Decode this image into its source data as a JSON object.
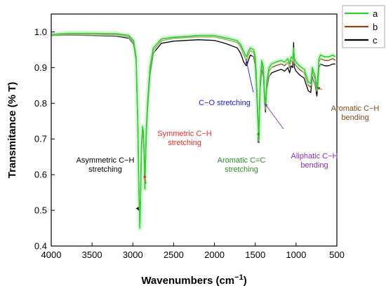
{
  "chart_data": {
    "type": "line",
    "xlabel": "Wavenumbers (cm",
    "xlabel_sup": "−1",
    "xlabel_end": ")",
    "ylabel": "Transmitance (% T)",
    "xlim": [
      4000,
      500
    ],
    "ylim": [
      0.4,
      1.05
    ],
    "x_reversed": true,
    "grid": false,
    "legend_position": "top-right",
    "x_ticks": [
      "4000",
      "3500",
      "3000",
      "2500",
      "2000",
      "1500",
      "1000",
      "500"
    ],
    "y_ticks": [
      "0.4",
      "0.5",
      "0.6",
      "0.7",
      "0.8",
      "0.9",
      "1.0"
    ],
    "series": [
      {
        "name": "a",
        "color": "#33cc33",
        "x": [
          4000,
          3800,
          3500,
          3200,
          3050,
          2990,
          2960,
          2940,
          2925,
          2915,
          2905,
          2895,
          2880,
          2870,
          2860,
          2852,
          2845,
          2835,
          2820,
          2790,
          2750,
          2650,
          2500,
          2350,
          2200,
          2000,
          1900,
          1800,
          1720,
          1680,
          1640,
          1610,
          1600,
          1585,
          1560,
          1520,
          1500,
          1490,
          1470,
          1455,
          1450,
          1440,
          1420,
          1400,
          1385,
          1375,
          1360,
          1330,
          1300,
          1250,
          1180,
          1140,
          1100,
          1080,
          1060,
          1040,
          1030,
          1020,
          1000,
          960,
          930,
          900,
          880,
          850,
          820,
          800,
          790,
          770,
          755,
          745,
          735,
          720,
          700,
          650,
          600,
          550,
          520
        ],
        "y": [
          0.993,
          0.996,
          0.996,
          0.995,
          0.99,
          0.975,
          0.93,
          0.75,
          0.55,
          0.45,
          0.54,
          0.68,
          0.735,
          0.72,
          0.64,
          0.56,
          0.64,
          0.73,
          0.8,
          0.9,
          0.955,
          0.98,
          0.985,
          0.987,
          0.99,
          0.99,
          0.985,
          0.98,
          0.975,
          0.965,
          0.945,
          0.93,
          0.935,
          0.945,
          0.955,
          0.95,
          0.93,
          0.89,
          0.78,
          0.7,
          0.76,
          0.86,
          0.92,
          0.9,
          0.82,
          0.79,
          0.86,
          0.9,
          0.91,
          0.915,
          0.92,
          0.915,
          0.925,
          0.91,
          0.93,
          0.925,
          0.95,
          0.925,
          0.915,
          0.905,
          0.9,
          0.895,
          0.88,
          0.86,
          0.855,
          0.9,
          0.89,
          0.88,
          0.86,
          0.84,
          0.87,
          0.925,
          0.935,
          0.93,
          0.93,
          0.935,
          0.93
        ]
      },
      {
        "name": "b",
        "color": "#8b4513",
        "x": [
          4000,
          3800,
          3500,
          3200,
          3050,
          2990,
          2960,
          2940,
          2925,
          2915,
          2905,
          2895,
          2880,
          2870,
          2860,
          2852,
          2845,
          2835,
          2820,
          2790,
          2750,
          2650,
          2500,
          2350,
          2200,
          2000,
          1900,
          1800,
          1720,
          1680,
          1640,
          1610,
          1600,
          1585,
          1560,
          1520,
          1500,
          1490,
          1470,
          1455,
          1450,
          1440,
          1420,
          1400,
          1385,
          1375,
          1360,
          1330,
          1300,
          1250,
          1180,
          1140,
          1100,
          1080,
          1060,
          1040,
          1030,
          1020,
          1000,
          960,
          930,
          900,
          880,
          850,
          820,
          800,
          790,
          770,
          755,
          745,
          735,
          720,
          700,
          650,
          600,
          550,
          520
        ],
        "y": [
          0.99,
          0.993,
          0.993,
          0.992,
          0.986,
          0.97,
          0.925,
          0.75,
          0.55,
          0.455,
          0.54,
          0.67,
          0.73,
          0.715,
          0.635,
          0.56,
          0.635,
          0.72,
          0.79,
          0.89,
          0.948,
          0.975,
          0.982,
          0.984,
          0.986,
          0.986,
          0.981,
          0.975,
          0.97,
          0.958,
          0.935,
          0.92,
          0.925,
          0.935,
          0.948,
          0.942,
          0.92,
          0.88,
          0.77,
          0.695,
          0.75,
          0.85,
          0.91,
          0.89,
          0.81,
          0.78,
          0.85,
          0.89,
          0.9,
          0.905,
          0.91,
          0.905,
          0.915,
          0.9,
          0.92,
          0.915,
          0.94,
          0.915,
          0.905,
          0.895,
          0.89,
          0.885,
          0.87,
          0.85,
          0.845,
          0.89,
          0.88,
          0.87,
          0.85,
          0.832,
          0.86,
          0.915,
          0.925,
          0.92,
          0.92,
          0.925,
          0.92
        ]
      },
      {
        "name": "c",
        "color": "#000000",
        "x": [
          4000,
          3800,
          3500,
          3200,
          3050,
          2990,
          2960,
          2940,
          2925,
          2915,
          2905,
          2895,
          2880,
          2870,
          2860,
          2852,
          2845,
          2835,
          2820,
          2790,
          2750,
          2650,
          2500,
          2350,
          2200,
          2000,
          1900,
          1800,
          1720,
          1680,
          1640,
          1610,
          1600,
          1585,
          1560,
          1520,
          1500,
          1490,
          1470,
          1455,
          1450,
          1440,
          1420,
          1400,
          1385,
          1375,
          1360,
          1330,
          1300,
          1250,
          1180,
          1140,
          1100,
          1080,
          1060,
          1040,
          1030,
          1020,
          1000,
          960,
          930,
          900,
          880,
          850,
          820,
          800,
          790,
          770,
          755,
          745,
          735,
          720,
          700,
          650,
          600,
          550,
          520
        ],
        "y": [
          0.99,
          0.991,
          0.99,
          0.988,
          0.982,
          0.965,
          0.92,
          0.74,
          0.55,
          0.46,
          0.545,
          0.665,
          0.72,
          0.71,
          0.63,
          0.565,
          0.63,
          0.71,
          0.78,
          0.88,
          0.94,
          0.968,
          0.974,
          0.976,
          0.978,
          0.976,
          0.97,
          0.962,
          0.955,
          0.94,
          0.915,
          0.905,
          0.91,
          0.92,
          0.935,
          0.93,
          0.905,
          0.865,
          0.76,
          0.69,
          0.745,
          0.84,
          0.895,
          0.875,
          0.8,
          0.775,
          0.84,
          0.875,
          0.885,
          0.89,
          0.895,
          0.89,
          0.9,
          0.885,
          0.905,
          0.9,
          0.97,
          0.9,
          0.89,
          0.88,
          0.875,
          0.87,
          0.855,
          0.835,
          0.83,
          0.875,
          0.865,
          0.855,
          0.835,
          0.82,
          0.845,
          0.9,
          0.91,
          0.905,
          0.905,
          0.91,
          0.91
        ]
      }
    ],
    "annotations": [
      {
        "lines": [
          "Asymmetric C−H",
          "stretching"
        ],
        "color": "#000000",
        "target_x": 2925,
        "target_y": 0.5
      },
      {
        "lines": [
          "Symmetric C−H",
          "stretching"
        ],
        "color": "#e03030",
        "target_x": 2860,
        "target_y": 0.6
      },
      {
        "lines": [
          "C−O stretching"
        ],
        "color": "#1a1acc",
        "target_x": 1610,
        "target_y": 0.92
      },
      {
        "lines": [
          "Aromatic C=C",
          "stretching"
        ],
        "color": "#2e8b2e",
        "target_x": 1460,
        "target_y": 0.72
      },
      {
        "lines": [
          "Aliphatic C−H",
          "bending"
        ],
        "color": "#8b2eb0",
        "target_x": 1385,
        "target_y": 0.8
      },
      {
        "lines": [
          "Aromatic C−H",
          "bending"
        ],
        "color": "#7a4a1e",
        "target_x": 745,
        "target_y": 0.845
      }
    ]
  }
}
